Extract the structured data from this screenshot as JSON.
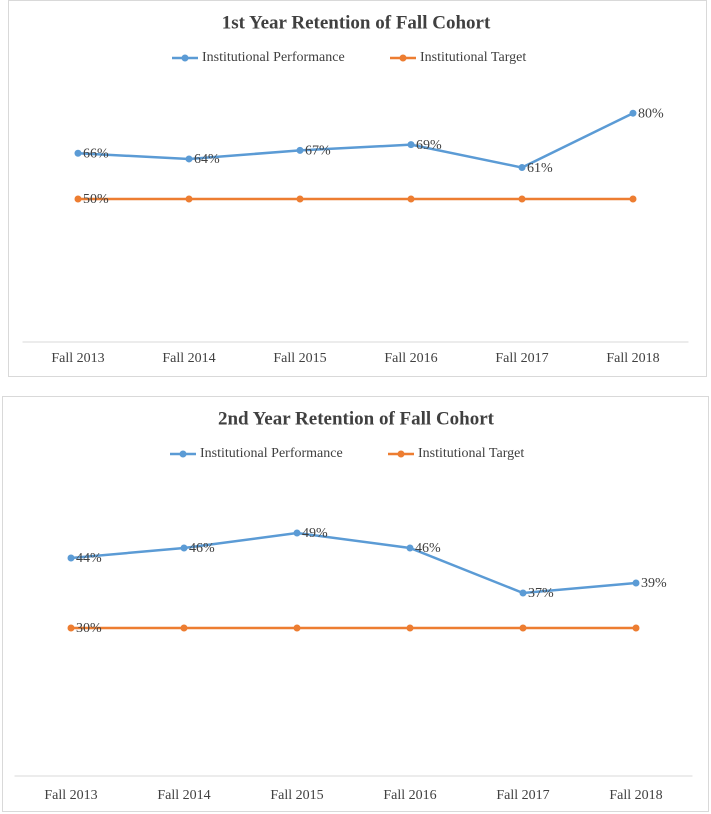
{
  "chart_data": [
    {
      "type": "line",
      "title": "1st Year Retention of Fall Cohort",
      "categories": [
        "Fall 2013",
        "Fall 2014",
        "Fall 2015",
        "Fall 2016",
        "Fall 2017",
        "Fall 2018"
      ],
      "series": [
        {
          "name": "Institutional Performance",
          "color": "#5b9bd5",
          "values": [
            66,
            64,
            67,
            69,
            61,
            80
          ],
          "value_labels": [
            "66%",
            "64%",
            "67%",
            "69%",
            "61%",
            "80%"
          ]
        },
        {
          "name": "Institutional Target",
          "color": "#ed7d31",
          "values": [
            50,
            50,
            50,
            50,
            50,
            50
          ],
          "value_labels": [
            "50%",
            null,
            null,
            null,
            null,
            null
          ]
        }
      ],
      "ylim": [
        0,
        100
      ]
    },
    {
      "type": "line",
      "title": "2nd Year Retention of Fall Cohort",
      "categories": [
        "Fall 2013",
        "Fall 2014",
        "Fall 2015",
        "Fall 2016",
        "Fall 2017",
        "Fall 2018"
      ],
      "series": [
        {
          "name": "Institutional Performance",
          "color": "#5b9bd5",
          "values": [
            44,
            46,
            49,
            46,
            37,
            39
          ],
          "value_labels": [
            "44%",
            "46%",
            "49%",
            "46%",
            "37%",
            "39%"
          ]
        },
        {
          "name": "Institutional Target",
          "color": "#ed7d31",
          "values": [
            30,
            30,
            30,
            30,
            30,
            30
          ],
          "value_labels": [
            "30%",
            null,
            null,
            null,
            null,
            null
          ]
        }
      ],
      "ylim": [
        0,
        60
      ]
    }
  ]
}
